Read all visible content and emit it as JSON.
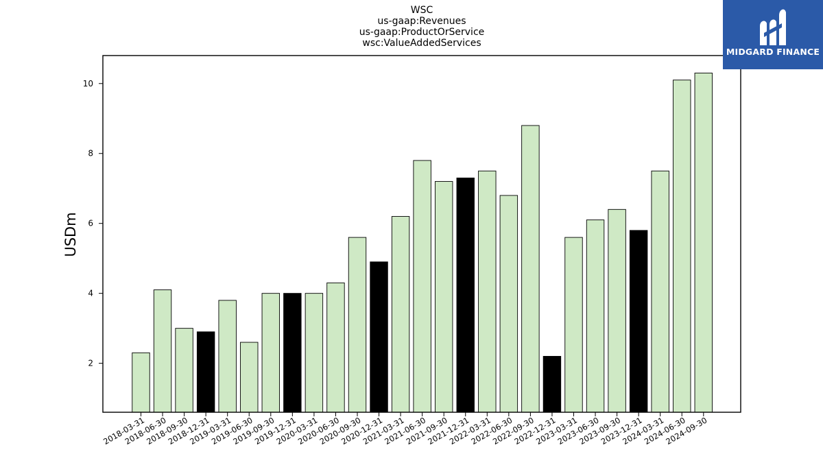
{
  "chart_data": {
    "type": "bar",
    "title_lines": [
      "WSC",
      "us-gaap:Revenues",
      "us-gaap:ProductOrService",
      "wsc:ValueAddedServices"
    ],
    "xlabel": "",
    "ylabel": "USDm",
    "ylim": [
      0.6,
      10.8
    ],
    "yticks": [
      2,
      4,
      6,
      8,
      10
    ],
    "grid": false,
    "categories": [
      "2018-03-31",
      "2018-06-30",
      "2018-09-30",
      "2018-12-31",
      "2019-03-31",
      "2019-06-30",
      "2019-09-30",
      "2019-12-31",
      "2020-03-31",
      "2020-06-30",
      "2020-09-30",
      "2020-12-31",
      "2021-03-31",
      "2021-06-30",
      "2021-09-30",
      "2021-12-31",
      "2022-03-31",
      "2022-06-30",
      "2022-09-30",
      "2022-12-31",
      "2023-03-31",
      "2023-06-30",
      "2023-09-30",
      "2023-12-31",
      "2024-03-31",
      "2024-06-30",
      "2024-09-30"
    ],
    "values": [
      2.3,
      4.1,
      3.0,
      2.9,
      3.8,
      2.6,
      4.0,
      4.0,
      4.0,
      4.3,
      5.6,
      4.9,
      6.2,
      7.8,
      7.2,
      7.3,
      7.5,
      6.8,
      8.8,
      2.2,
      5.6,
      6.1,
      6.4,
      5.8,
      7.5,
      10.1,
      10.3
    ],
    "highlight": [
      false,
      false,
      false,
      true,
      false,
      false,
      false,
      true,
      false,
      false,
      false,
      true,
      false,
      false,
      false,
      true,
      false,
      false,
      false,
      true,
      false,
      false,
      false,
      true,
      false,
      false,
      false
    ],
    "colors": {
      "bar": "#cfe9c5",
      "highlight": "#000000",
      "edge": "#000000"
    }
  },
  "brand": {
    "name": "MIDGARD FINANCE",
    "color": "#2b5aa8"
  }
}
